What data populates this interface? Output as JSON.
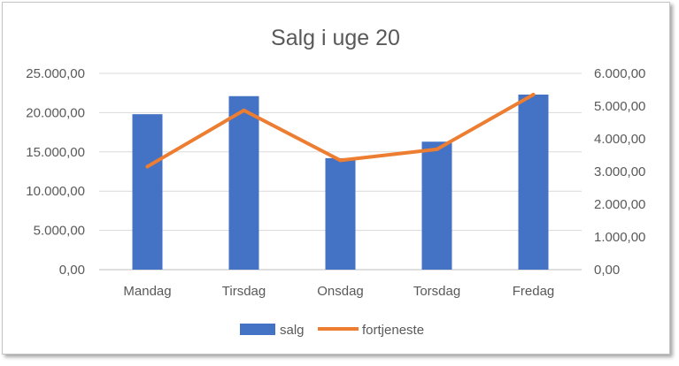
{
  "chart_data": {
    "type": "bar",
    "title": "Salg i uge 20",
    "categories": [
      "Mandag",
      "Tirsdag",
      "Onsdag",
      "Torsdag",
      "Fredag"
    ],
    "series": [
      {
        "name": "salg",
        "type": "bar",
        "axis": "left",
        "color": "#4472c4",
        "values": [
          19800,
          22100,
          14200,
          16300,
          22300
        ]
      },
      {
        "name": "fortjeneste",
        "type": "line",
        "axis": "right",
        "color": "#ed7d31",
        "values": [
          3150,
          4870,
          3340,
          3680,
          5350
        ]
      }
    ],
    "y_left": {
      "ylim": [
        0,
        25000
      ],
      "ticks": [
        0,
        5000,
        10000,
        15000,
        20000,
        25000
      ],
      "tick_labels": [
        "0,00",
        "5.000,00",
        "10.000,00",
        "15.000,00",
        "20.000,00",
        "25.000,00"
      ]
    },
    "y_right": {
      "ylim": [
        0,
        6000
      ],
      "ticks": [
        0,
        1000,
        2000,
        3000,
        4000,
        5000,
        6000
      ],
      "tick_labels": [
        "0,00",
        "1.000,00",
        "2.000,00",
        "3.000,00",
        "4.000,00",
        "5.000,00",
        "6.000,00"
      ]
    },
    "grid": true,
    "legend": "bottom",
    "gridline_color": "#d9d9d9",
    "axis_text_color": "#595959"
  }
}
